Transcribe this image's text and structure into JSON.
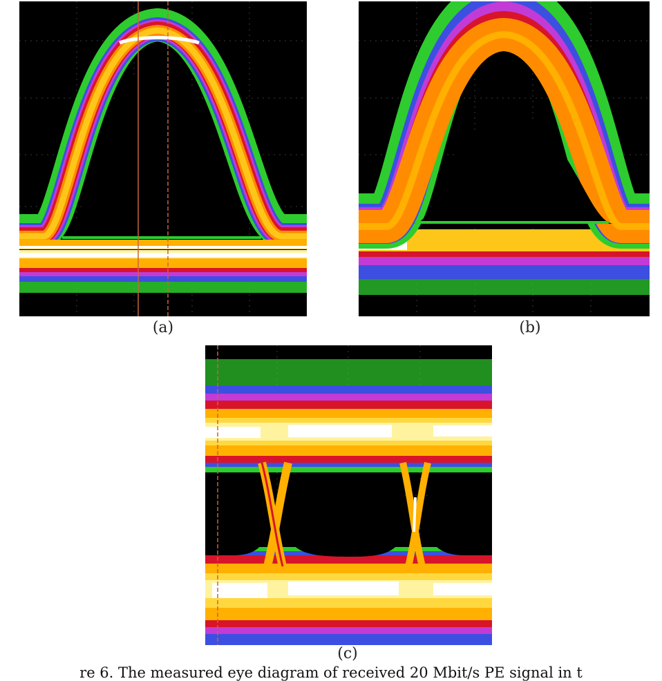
{
  "figure": {
    "panels": [
      {
        "id": "a",
        "label": "(a)"
      },
      {
        "id": "b",
        "label": "(b)"
      },
      {
        "id": "c",
        "label": "(c)"
      }
    ],
    "caption": "re 6. The measured eye diagram of received 20 Mbit/s PE signal in t"
  },
  "colors": {
    "background": "#000000",
    "density_scale": [
      "#2ecc2e",
      "#3d4fe0",
      "#c23bd6",
      "#d8142a",
      "#ff8c00",
      "#ffc61a",
      "#fff3a0",
      "#ffffff"
    ],
    "marker": "#c8643c",
    "grid": "#3a3a3a"
  }
}
